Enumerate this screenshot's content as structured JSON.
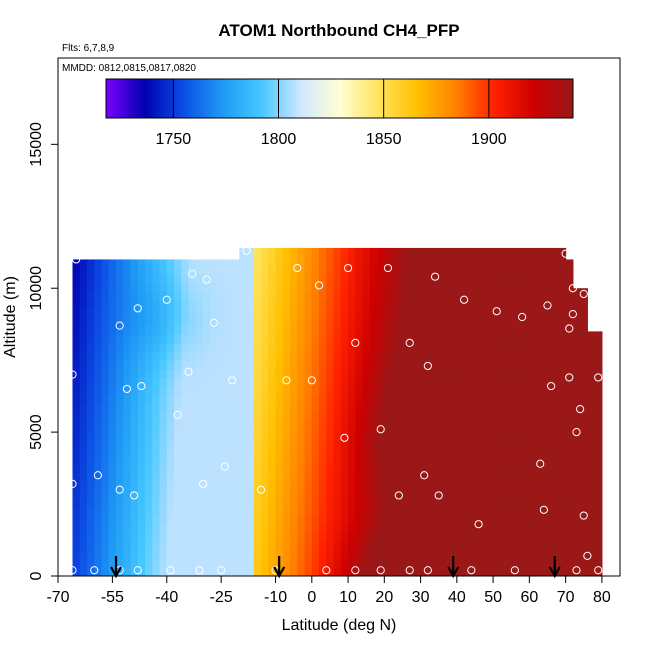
{
  "chart_data": {
    "type": "heatmap",
    "title": "ATOM1 Northbound CH4_PFP",
    "subtitle_flights": "Flts: 6,7,8,9",
    "subtitle_dates": "MMDD: 0812,0815,0817,0820",
    "xlabel": "Latitude (deg N)",
    "ylabel": "Altitude (m)",
    "xlim": [
      -70,
      85
    ],
    "ylim": [
      0,
      18000
    ],
    "x_ticks": [
      -70,
      -55,
      -40,
      -25,
      -10,
      0,
      10,
      20,
      30,
      40,
      50,
      60,
      70,
      80
    ],
    "x_tick_labels": [
      "-70",
      "-55",
      "-40",
      "-25",
      "-10",
      "0",
      "10",
      "20",
      "30",
      "40",
      "50",
      "60",
      "70",
      "80"
    ],
    "y_ticks": [
      0,
      5000,
      10000,
      15000
    ],
    "y_tick_labels": [
      "0",
      "5000",
      "10000",
      "15000"
    ],
    "colorbar": {
      "range": [
        1718,
        1940
      ],
      "ticks": [
        1750,
        1800,
        1850,
        1900
      ],
      "tick_labels": [
        "1750",
        "1800",
        "1850",
        "1900"
      ],
      "colors": [
        "#7b00ff",
        "#0000b0",
        "#0c4fe6",
        "#1e9af5",
        "#47c8ff",
        "#cfe6ff",
        "#ffffd6",
        "#ffe45c",
        "#ffc000",
        "#ff8000",
        "#ff2000",
        "#cc0000",
        "#9a1818"
      ]
    },
    "surface_markers_lat": [
      -54,
      -9,
      39,
      67
    ],
    "sample_points": [
      {
        "lat": -65,
        "alt": 11000
      },
      {
        "lat": -48,
        "alt": 9300
      },
      {
        "lat": -40,
        "alt": 9600
      },
      {
        "lat": -33,
        "alt": 10500
      },
      {
        "lat": -29,
        "alt": 10300
      },
      {
        "lat": -27,
        "alt": 8800
      },
      {
        "lat": -53,
        "alt": 8700
      },
      {
        "lat": -66,
        "alt": 7000
      },
      {
        "lat": -34,
        "alt": 7100
      },
      {
        "lat": -51,
        "alt": 6500
      },
      {
        "lat": -47,
        "alt": 6600
      },
      {
        "lat": -37,
        "alt": 5600
      },
      {
        "lat": -22,
        "alt": 6800
      },
      {
        "lat": -24,
        "alt": 3800
      },
      {
        "lat": -59,
        "alt": 3500
      },
      {
        "lat": -66,
        "alt": 3200
      },
      {
        "lat": -53,
        "alt": 3000
      },
      {
        "lat": -49,
        "alt": 2800
      },
      {
        "lat": -30,
        "alt": 3200
      },
      {
        "lat": -14,
        "alt": 3000
      },
      {
        "lat": -66,
        "alt": 200
      },
      {
        "lat": -60,
        "alt": 200
      },
      {
        "lat": -53,
        "alt": 200
      },
      {
        "lat": -48,
        "alt": 200
      },
      {
        "lat": -39,
        "alt": 200
      },
      {
        "lat": -31,
        "alt": 200
      },
      {
        "lat": -25,
        "alt": 200
      },
      {
        "lat": -10,
        "alt": 200
      },
      {
        "lat": 4,
        "alt": 200
      },
      {
        "lat": 12,
        "alt": 200
      },
      {
        "lat": 19,
        "alt": 200
      },
      {
        "lat": 27,
        "alt": 200
      },
      {
        "lat": 32,
        "alt": 200
      },
      {
        "lat": 44,
        "alt": 200
      },
      {
        "lat": 56,
        "alt": 200
      },
      {
        "lat": 73,
        "alt": 200
      },
      {
        "lat": 79,
        "alt": 200
      },
      {
        "lat": 76,
        "alt": 700
      },
      {
        "lat": 75,
        "alt": 2100
      },
      {
        "lat": 64,
        "alt": 2300
      },
      {
        "lat": 46,
        "alt": 1800
      },
      {
        "lat": 35,
        "alt": 2800
      },
      {
        "lat": 24,
        "alt": 2800
      },
      {
        "lat": 31,
        "alt": 3500
      },
      {
        "lat": 63,
        "alt": 3900
      },
      {
        "lat": 19,
        "alt": 5100
      },
      {
        "lat": 9,
        "alt": 4800
      },
      {
        "lat": 73,
        "alt": 5000
      },
      {
        "lat": 74,
        "alt": 5800
      },
      {
        "lat": -7,
        "alt": 6800
      },
      {
        "lat": 0,
        "alt": 6800
      },
      {
        "lat": 32,
        "alt": 7300
      },
      {
        "lat": 66,
        "alt": 6600
      },
      {
        "lat": 71,
        "alt": 6900
      },
      {
        "lat": 79,
        "alt": 6900
      },
      {
        "lat": 12,
        "alt": 8100
      },
      {
        "lat": 27,
        "alt": 8100
      },
      {
        "lat": 71,
        "alt": 8600
      },
      {
        "lat": 51,
        "alt": 9200
      },
      {
        "lat": 58,
        "alt": 9000
      },
      {
        "lat": 65,
        "alt": 9400
      },
      {
        "lat": 72,
        "alt": 9100
      },
      {
        "lat": 2,
        "alt": 10100
      },
      {
        "lat": 10,
        "alt": 10700
      },
      {
        "lat": 21,
        "alt": 10700
      },
      {
        "lat": 34,
        "alt": 10400
      },
      {
        "lat": 42,
        "alt": 9600
      },
      {
        "lat": -4,
        "alt": 10700
      },
      {
        "lat": 72,
        "alt": 10000
      },
      {
        "lat": 75,
        "alt": 9800
      },
      {
        "lat": 70,
        "alt": 11200
      },
      {
        "lat": -18,
        "alt": 11300
      }
    ]
  }
}
